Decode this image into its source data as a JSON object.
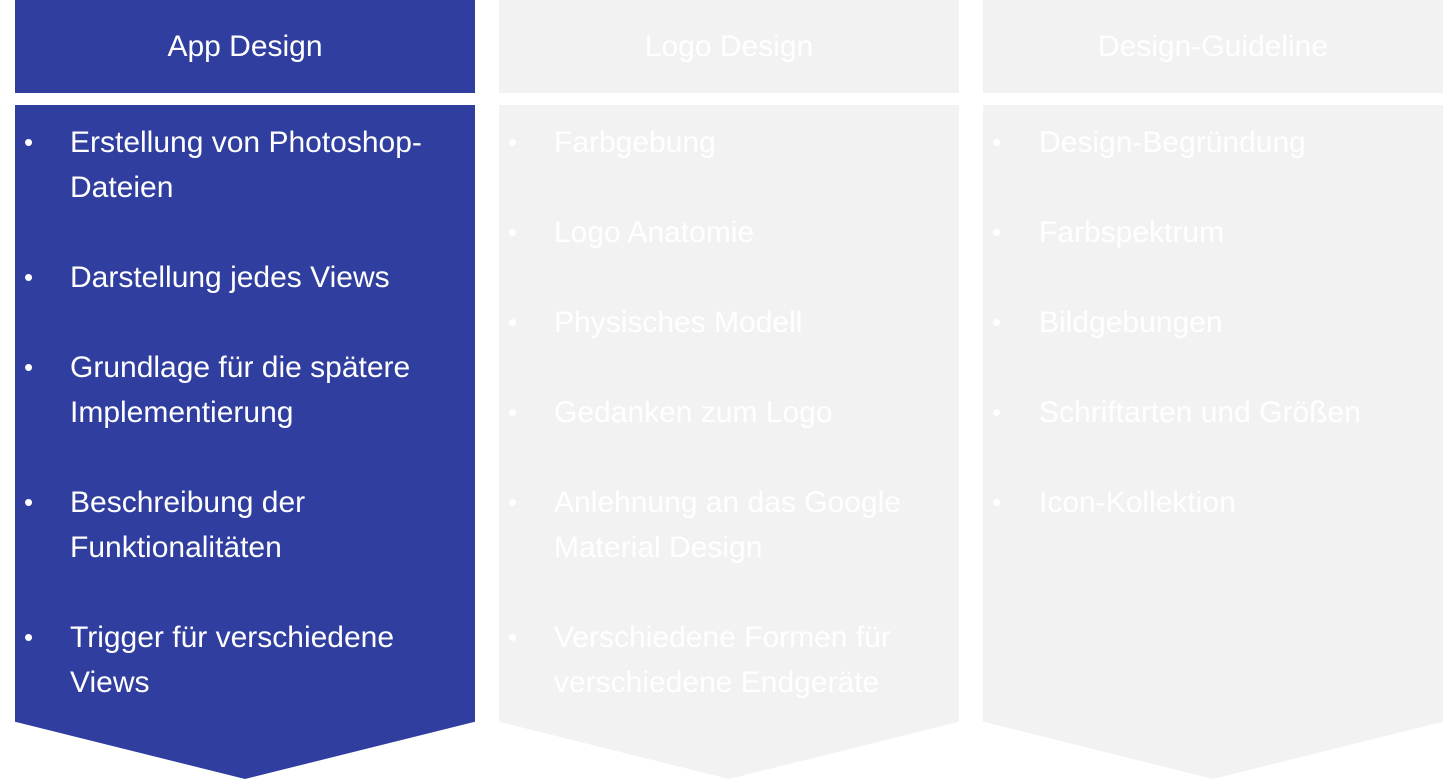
{
  "colors": {
    "active_fill": "#303F9F",
    "active_text": "#FFFFFF",
    "inactive_fill": "#F2F2F2",
    "inactive_text": "#FFFFFF"
  },
  "bullet_glyph": "•",
  "columns": [
    {
      "title": "App Design",
      "active": true,
      "items": [
        "Erstellung von Photoshop-Dateien",
        "Darstellung jedes Views",
        "Grundlage für die spätere Implementierung",
        "Beschreibung der Funktionalitäten",
        "Trigger für verschiedene Views"
      ]
    },
    {
      "title": "Logo Design",
      "active": false,
      "items": [
        "Farbgebung",
        "Logo Anatomie",
        "Physisches Modell",
        "Gedanken zum Logo",
        "Anlehnung an das Google Material Design",
        "Verschiedene Formen für verschiedene Endgeräte"
      ]
    },
    {
      "title": "Design-Guideline",
      "active": false,
      "items": [
        "Design-Begründung",
        "Farbspektrum",
        "Bildgebungen",
        "Schriftarten und Größen",
        "Icon-Kollektion"
      ]
    }
  ]
}
